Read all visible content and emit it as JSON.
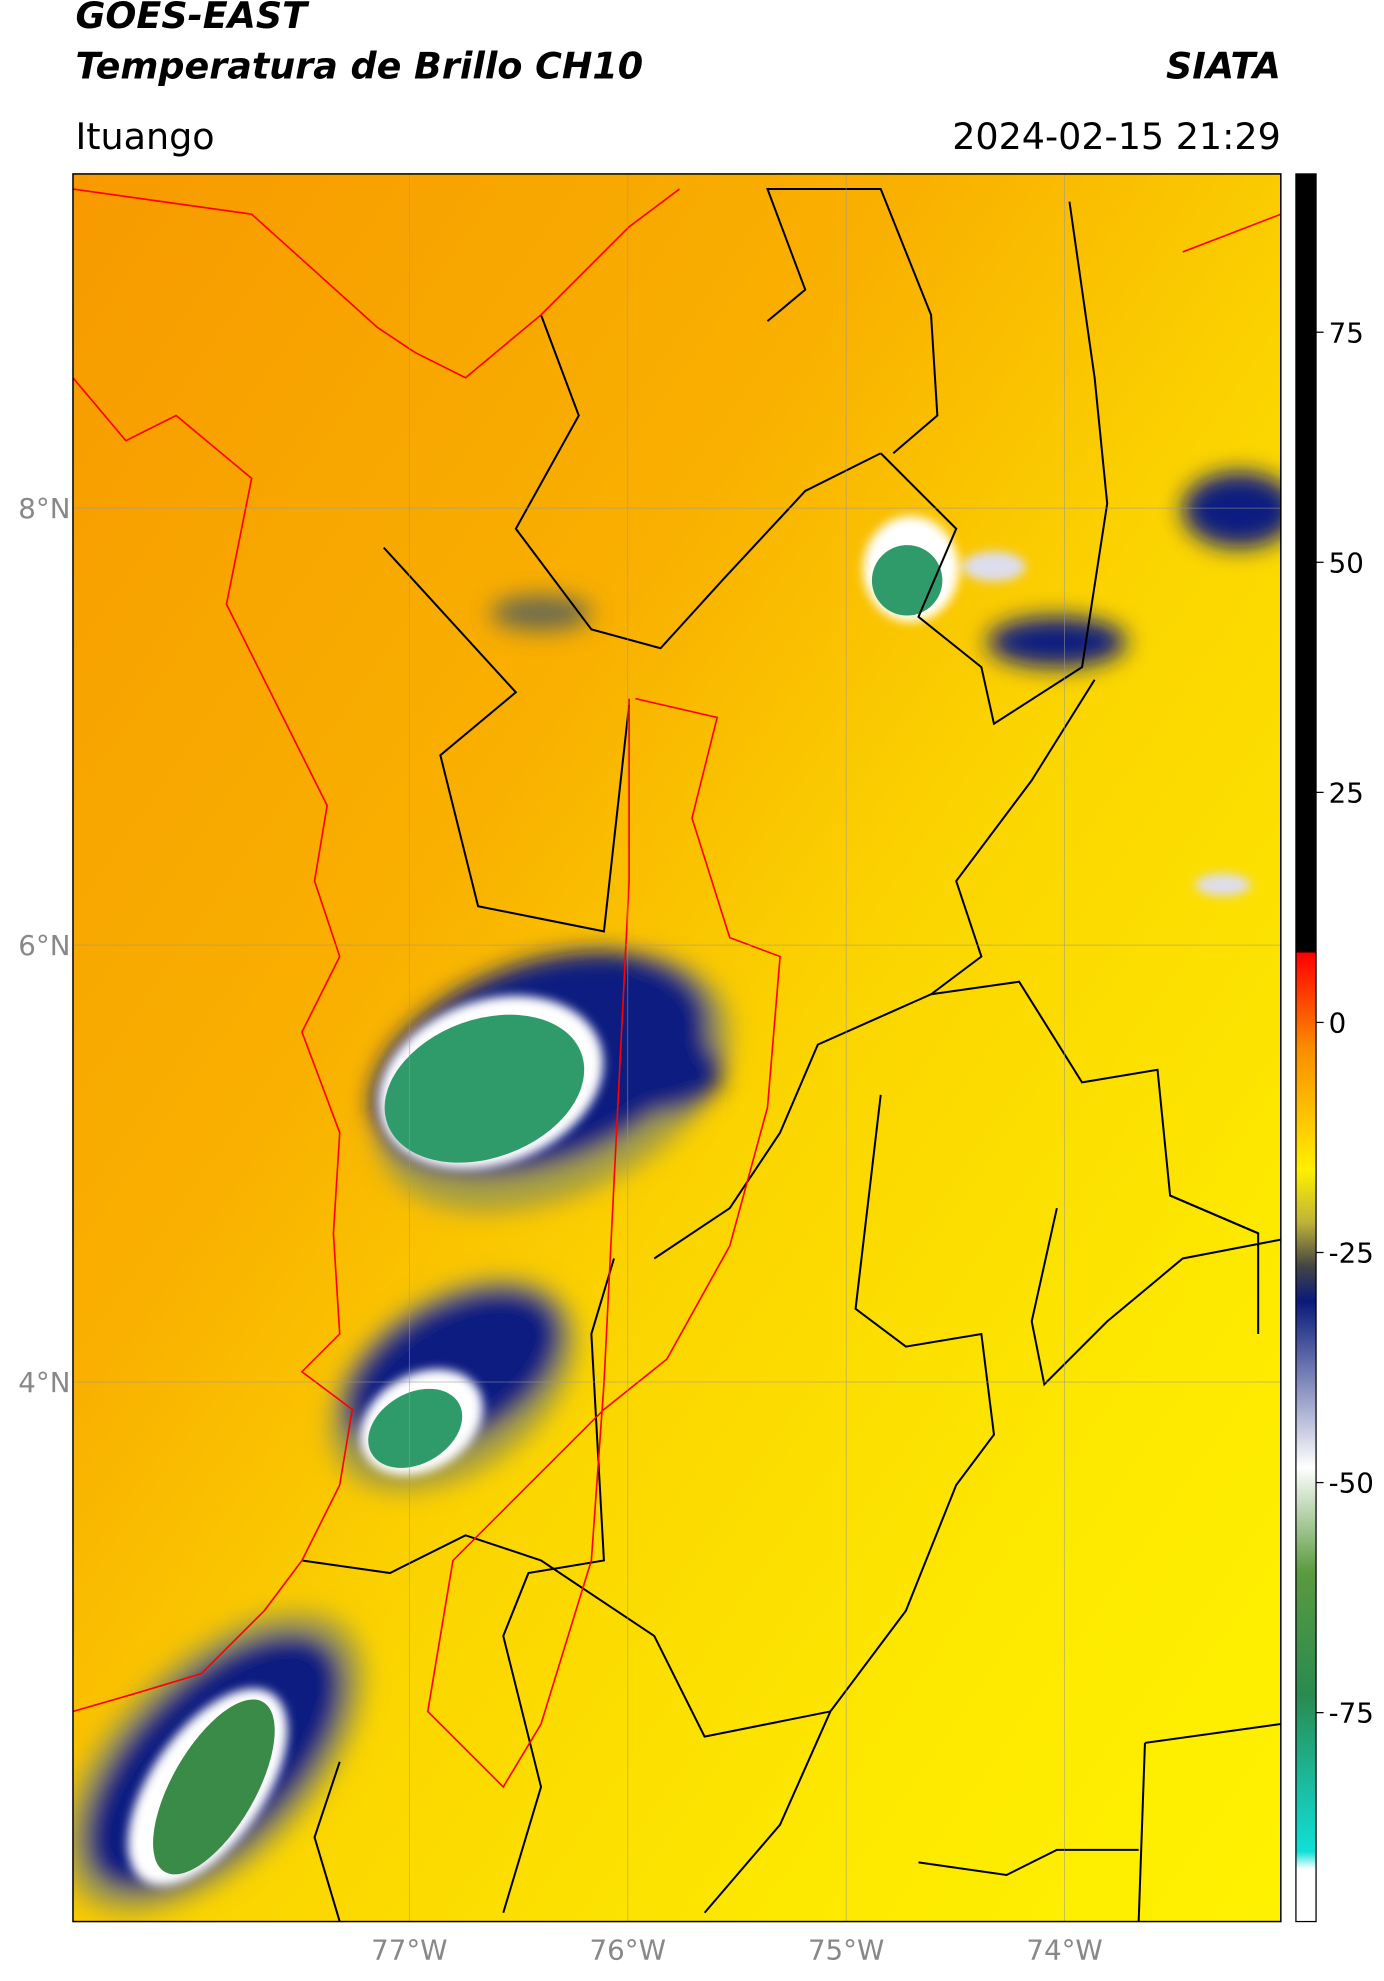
{
  "header": {
    "title": "GOES-EAST",
    "subtitle": "Temperatura de Brillo CH10",
    "brand": "SIATA",
    "location": "Ituango",
    "datetime": "2024-02-15 21:29"
  },
  "map": {
    "xlim": [
      -78.54,
      -73.01
    ],
    "ylim": [
      1.53,
      9.53
    ],
    "xticks": [
      {
        "value": -77,
        "label": "77°W"
      },
      {
        "value": -76,
        "label": "76°W"
      },
      {
        "value": -75,
        "label": "75°W"
      },
      {
        "value": -74,
        "label": "74°W"
      }
    ],
    "yticks": [
      {
        "value": 4,
        "label": "4°N"
      },
      {
        "value": 6,
        "label": "6°N"
      },
      {
        "value": 8,
        "label": "8°N"
      }
    ],
    "grid": true
  },
  "colorbar": {
    "lim": [
      -97.7,
      92.2
    ],
    "ticks": [
      -75,
      -50,
      -25,
      0,
      25,
      50,
      75
    ]
  }
}
